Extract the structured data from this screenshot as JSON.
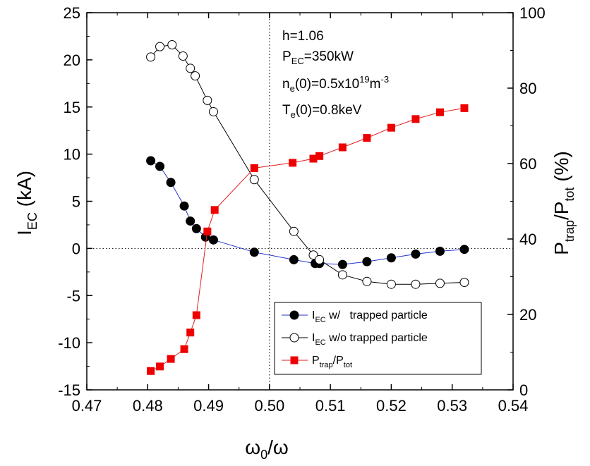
{
  "chart_data": {
    "type": "line",
    "xlabel": {
      "main": "ω",
      "sub": "0",
      "rest": "/ω"
    },
    "ylabel_left": {
      "main": "I",
      "sub": "EC",
      "rest": " (kA)"
    },
    "ylabel_right": {
      "p1": "P",
      "s1": "trap",
      "p2": "/P",
      "s2": "tot",
      "p3": " (%)"
    },
    "xlim": [
      0.47,
      0.54
    ],
    "ylim_left": [
      -15,
      25
    ],
    "ylim_right": [
      0,
      100
    ],
    "x_ticks": [
      "0.47",
      "0.48",
      "0.49",
      "0.50",
      "0.51",
      "0.52",
      "0.53",
      "0.54"
    ],
    "y_left_ticks": [
      "-15",
      "-10",
      "-5",
      "0",
      "5",
      "10",
      "15",
      "20",
      "25"
    ],
    "y_right_ticks": [
      "0",
      "20",
      "40",
      "60",
      "80",
      "100"
    ],
    "reference_lines": {
      "x": 0.5,
      "y_left": 0
    },
    "annotations": {
      "h": "h=1.06",
      "pec": {
        "p": "P",
        "sub": "EC",
        "rest": "=350kW"
      },
      "ne": {
        "p": "n",
        "sub": "e",
        "mid": "(0)=0.5x10",
        "sup": "19",
        "mid2": "m",
        "sup2": "-3"
      },
      "te": {
        "p": "T",
        "sub": "e",
        "rest": "(0)=0.8keV"
      }
    },
    "legend_position": "lower-right",
    "series": [
      {
        "name": "I_EC w/ trapped particle",
        "legend": {
          "p": "I",
          "sub": "EC",
          "rest": " w/   trapped particle"
        },
        "axis": "left",
        "marker": "filled-circle",
        "line_color": "#2233cc",
        "marker_color": "#000000",
        "x": [
          0.4805,
          0.482,
          0.4838,
          0.486,
          0.487,
          0.488,
          0.4895,
          0.4908,
          0.4975,
          0.504,
          0.5075,
          0.5082,
          0.512,
          0.516,
          0.52,
          0.524,
          0.528,
          0.532
        ],
        "y": [
          9.3,
          8.7,
          7.0,
          4.5,
          2.9,
          2.1,
          1.2,
          0.9,
          -0.4,
          -1.2,
          -1.6,
          -1.6,
          -1.7,
          -1.4,
          -1.0,
          -0.6,
          -0.3,
          -0.1
        ]
      },
      {
        "name": "I_EC w/o trapped particle",
        "legend": {
          "p": "I",
          "sub": "EC",
          "rest": " w/o trapped particle"
        },
        "axis": "left",
        "marker": "open-circle",
        "line_color": "#000000",
        "marker_color": "#000000",
        "x": [
          0.4805,
          0.482,
          0.484,
          0.4858,
          0.487,
          0.4878,
          0.4898,
          0.4908,
          0.4975,
          0.504,
          0.5072,
          0.5082,
          0.512,
          0.516,
          0.52,
          0.524,
          0.528,
          0.532
        ],
        "y": [
          20.3,
          21.4,
          21.6,
          20.4,
          19.1,
          18.3,
          15.7,
          14.5,
          7.3,
          1.8,
          -0.7,
          -1.2,
          -2.8,
          -3.5,
          -3.8,
          -3.8,
          -3.7,
          -3.6
        ]
      },
      {
        "name": "P_trap/P_tot",
        "legend": {
          "p1": "P",
          "s1": "trap",
          "p2": "/P",
          "s2": "tot"
        },
        "axis": "right",
        "marker": "filled-square",
        "line_color": "#e02020",
        "marker_color": "#ee0000",
        "x": [
          0.4805,
          0.482,
          0.4838,
          0.486,
          0.487,
          0.488,
          0.4898,
          0.491,
          0.4975,
          0.5038,
          0.5072,
          0.5082,
          0.512,
          0.516,
          0.52,
          0.524,
          0.528,
          0.532
        ],
        "y": [
          5.0,
          6.2,
          8.2,
          10.8,
          15.2,
          19.8,
          42.0,
          47.7,
          58.8,
          60.2,
          61.3,
          62.0,
          64.3,
          66.8,
          69.5,
          71.8,
          73.6,
          74.7
        ]
      }
    ]
  }
}
